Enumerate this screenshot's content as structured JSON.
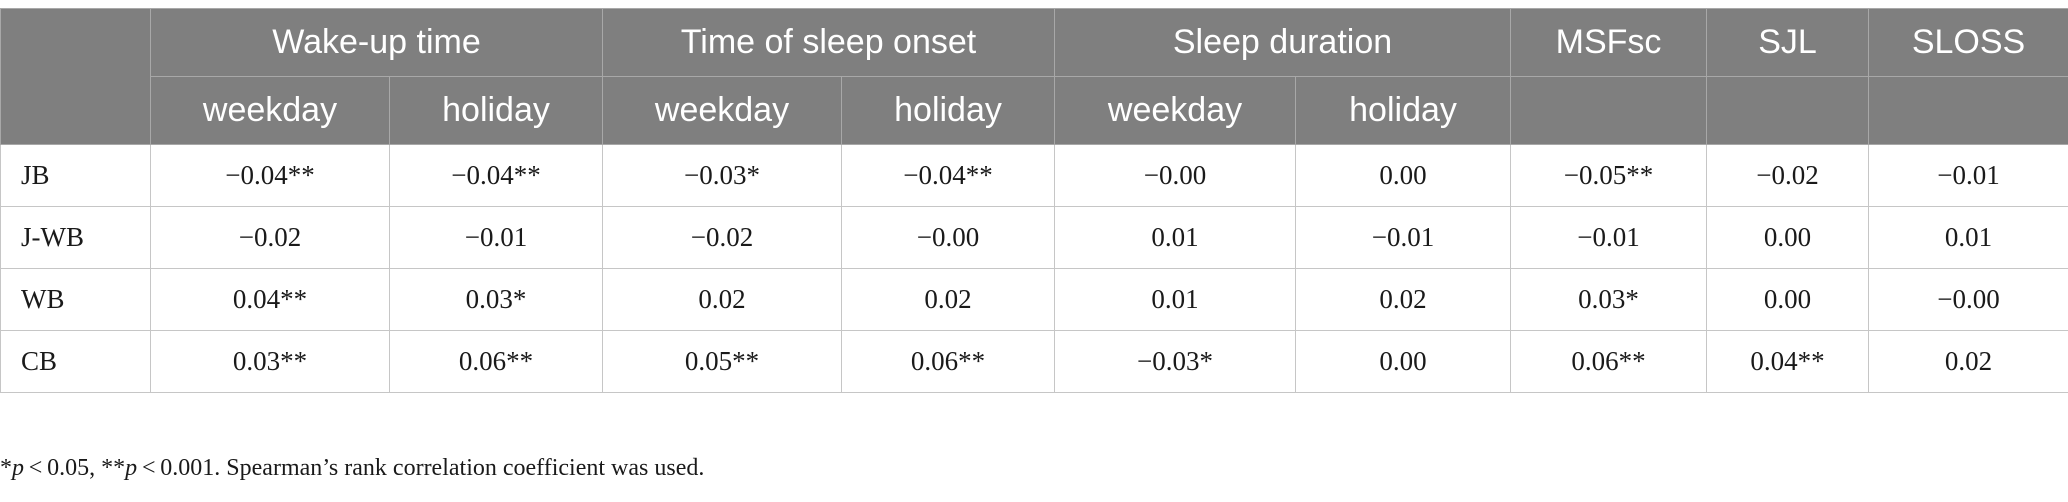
{
  "header": {
    "groups": [
      "Wake-up time",
      "Time of sleep onset",
      "Sleep duration",
      "MSFsc",
      "SJL",
      "SLOSS"
    ],
    "subheaders": [
      "weekday",
      "holiday",
      "weekday",
      "holiday",
      "weekday",
      "holiday"
    ]
  },
  "rows": [
    {
      "label": "JB",
      "values": [
        "−0.04**",
        "−0.04**",
        "−0.03*",
        "−0.04**",
        "−0.00",
        "0.00",
        "−0.05**",
        "−0.02",
        "−0.01"
      ]
    },
    {
      "label": "J-WB",
      "values": [
        "−0.02",
        "−0.01",
        "−0.02",
        "−0.00",
        "0.01",
        "−0.01",
        "−0.01",
        "0.00",
        "0.01"
      ]
    },
    {
      "label": "WB",
      "values": [
        "0.04**",
        "0.03*",
        "0.02",
        "0.02",
        "0.01",
        "0.02",
        "0.03*",
        "0.00",
        "−0.00"
      ]
    },
    {
      "label": "CB",
      "values": [
        "0.03**",
        "0.06**",
        "0.05**",
        "0.06**",
        "−0.03*",
        "0.00",
        "0.06**",
        "0.04**",
        "0.02"
      ]
    }
  ],
  "footnote": {
    "part1_star": "*",
    "p1": "p",
    "part1_rest": " < 0.05, **",
    "p2": "p",
    "part2_rest": " < 0.001. Spearman’s rank correlation coefficient was used."
  }
}
